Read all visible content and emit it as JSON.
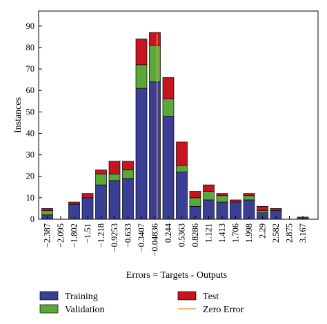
{
  "chart_data": {
    "type": "bar",
    "stacked": true,
    "title": "",
    "xlabel": "Errors = Targets - Outputs",
    "ylabel": "Instances",
    "ylim": [
      0,
      97
    ],
    "yticks": [
      0,
      10,
      20,
      30,
      40,
      50,
      60,
      70,
      80,
      90
    ],
    "categories": [
      "-2.387",
      "-2.095",
      "-1.802",
      "-1.51",
      "-1.218",
      "-0.9253",
      "-0.633",
      "-0.3407",
      "-0.04836",
      "0.244",
      "0.5363",
      "0.8286",
      "1.121",
      "1.413",
      "1.706",
      "1.998",
      "2.29",
      "2.582",
      "2.875",
      "3.167"
    ],
    "series": [
      {
        "name": "Training",
        "color": "#3a3f94",
        "values": [
          2,
          0,
          7,
          10,
          16,
          18,
          19,
          61,
          64,
          48,
          22,
          6,
          9,
          8,
          8,
          9,
          3,
          4,
          0,
          1
        ]
      },
      {
        "name": "Validation",
        "color": "#5aa83a",
        "values": [
          2,
          0,
          0,
          0,
          5,
          3,
          4,
          11,
          17,
          8,
          3,
          4,
          4,
          3,
          0,
          2,
          1,
          0,
          0,
          0
        ]
      },
      {
        "name": "Test",
        "color": "#c8141e",
        "values": [
          1,
          0,
          1,
          2,
          2,
          6,
          4,
          12,
          6,
          10,
          11,
          3,
          3,
          1,
          1,
          1,
          2,
          1,
          0,
          0
        ]
      }
    ],
    "zero_error": {
      "name": "Zero Error",
      "color": "#f0a050",
      "x": 0
    },
    "legend_position": "bottom",
    "grid": false
  }
}
